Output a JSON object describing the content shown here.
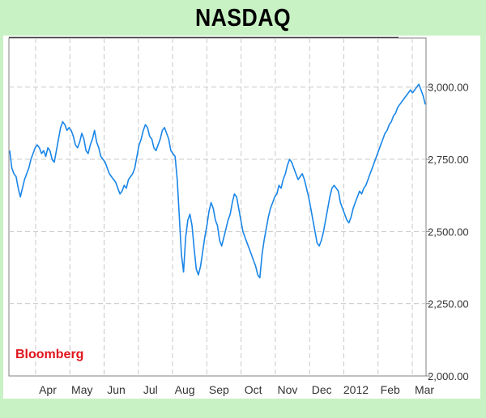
{
  "source_label": "Bloomberg",
  "colors": {
    "background": "#c9f2c4",
    "plot_background": "#ffffff",
    "line": "#1a86e8",
    "grid": "#c8c8c8",
    "source_label": "#e0141c"
  },
  "chart_data": {
    "type": "line",
    "title": "NASDAQ",
    "xlabel": "",
    "ylabel": "",
    "x_ticks": [
      "Apr",
      "May",
      "Jun",
      "Jul",
      "Aug",
      "Sep",
      "Oct",
      "Nov",
      "Dec",
      "2012",
      "Feb",
      "Mar"
    ],
    "y_ticks": [
      "3,000.00",
      "2,750.00",
      "2,500.00",
      "2,250.00",
      "2,000.00"
    ],
    "y_tick_values": [
      3000,
      2750,
      2500,
      2250,
      2000
    ],
    "ylim": [
      2000,
      3170
    ],
    "y_axis_position": "right",
    "grid": true,
    "series": [
      {
        "values": [
          2780,
          2720,
          2700,
          2690,
          2650,
          2620,
          2650,
          2680,
          2700,
          2720,
          2750,
          2770,
          2790,
          2800,
          2790,
          2770,
          2780,
          2760,
          2790,
          2780,
          2750,
          2740,
          2780,
          2820,
          2860,
          2880,
          2870,
          2850,
          2860,
          2850,
          2830,
          2800,
          2790,
          2810,
          2840,
          2820,
          2780,
          2770,
          2800,
          2820,
          2850,
          2810,
          2790,
          2760,
          2750,
          2740,
          2720,
          2700,
          2690,
          2680,
          2670,
          2650,
          2630,
          2640,
          2660,
          2650,
          2680,
          2690,
          2700,
          2720,
          2760,
          2800,
          2820,
          2850,
          2870,
          2860,
          2830,
          2820,
          2790,
          2780,
          2800,
          2820,
          2850,
          2860,
          2840,
          2820,
          2780,
          2770,
          2760,
          2680,
          2550,
          2420,
          2360,
          2480,
          2540,
          2560,
          2520,
          2440,
          2370,
          2350,
          2380,
          2430,
          2480,
          2520,
          2570,
          2600,
          2580,
          2540,
          2520,
          2470,
          2450,
          2480,
          2510,
          2540,
          2560,
          2600,
          2630,
          2620,
          2580,
          2540,
          2500,
          2480,
          2460,
          2440,
          2420,
          2400,
          2380,
          2350,
          2340,
          2420,
          2470,
          2510,
          2550,
          2580,
          2600,
          2620,
          2630,
          2660,
          2650,
          2680,
          2700,
          2730,
          2750,
          2740,
          2720,
          2700,
          2680,
          2690,
          2700,
          2680,
          2650,
          2620,
          2580,
          2540,
          2500,
          2460,
          2450,
          2470,
          2500,
          2540,
          2580,
          2620,
          2650,
          2660,
          2650,
          2640,
          2600,
          2580,
          2560,
          2540,
          2530,
          2550,
          2580,
          2600,
          2620,
          2640,
          2630,
          2650,
          2660,
          2680,
          2700,
          2720,
          2740,
          2760,
          2780,
          2800,
          2820,
          2840,
          2850,
          2870,
          2880,
          2900,
          2910,
          2930,
          2940,
          2950,
          2960,
          2970,
          2980,
          2990,
          2980,
          2990,
          3000,
          3010,
          2990,
          2970,
          2940
        ]
      }
    ]
  }
}
